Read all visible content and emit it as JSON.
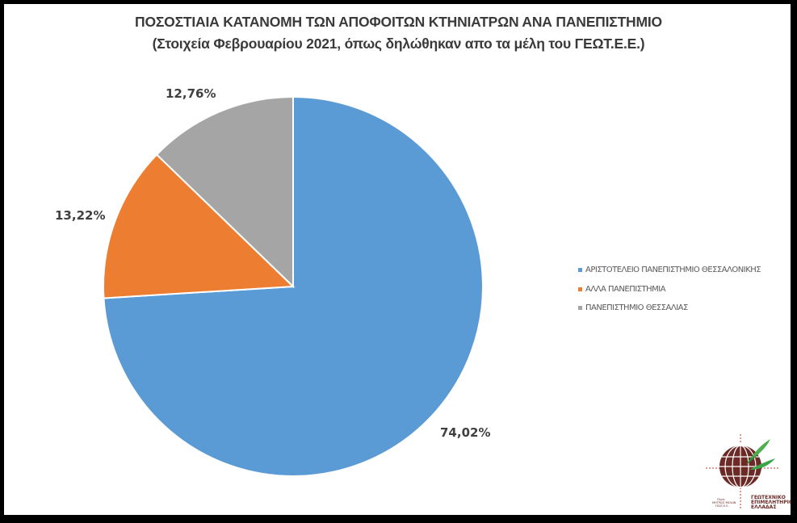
{
  "chart_data": {
    "type": "pie",
    "title": "ΠΟΣΟΣΤΙΑΙΑ ΚΑΤΑΝΟΜΗ ΤΩΝ ΑΠΟΦΟΙΤΩΝ ΚΤΗΝΙΑΤΡΩΝ ΑΝΑ ΠΑΝΕΠΙΣΤΗΜΙΟ",
    "subtitle": "(Στοιχεία Φεβρουαρίου 2021, όπως δηλώθηκαν απο τα μέλη του ΓΕΩΤ.Ε.Ε.)",
    "categories": [
      "ΑΡΙΣΤΟΤΕΛΕΙΟ ΠΑΝΕΠΙΣΤΗΜΙΟ ΘΕΣΣΑΛΟΝΙΚΗΣ",
      "ΑΛΛΑ ΠΑΝΕΠΙΣΤΗΜΙΑ",
      "ΠΑΝΕΠΙΣΤΗΜΙΟ ΘΕΣΣΑΛΙΑΣ"
    ],
    "values": [
      74.02,
      13.22,
      12.76
    ],
    "labels": [
      "74,02%",
      "13,22%",
      "12,76%"
    ],
    "colors": [
      "#5b9bd5",
      "#ed7d31",
      "#a5a5a5"
    ],
    "legend_position": "right",
    "start_angle_deg": 0,
    "direction": "clockwise"
  },
  "logo": {
    "name": "ΓΕΩΤΕΧΝΙΚΟ ΕΠΙΜΕΛΗΤΗΡΙΟ ΕΛΛΑΔΑΣ",
    "lines": [
      "ΓΕΩΤΕΧΝΙΚΟ",
      "ΕΠΙΜΕΛΗΤΗΡΙΟ",
      "ΕΛΛΑΔΑΣ"
    ],
    "small_lines": [
      "Πηγή:",
      "ΜΗΤΡΩΟ ΜΕΛΩΝ",
      "ΓΕΩΤ.Ε.Ε."
    ]
  }
}
